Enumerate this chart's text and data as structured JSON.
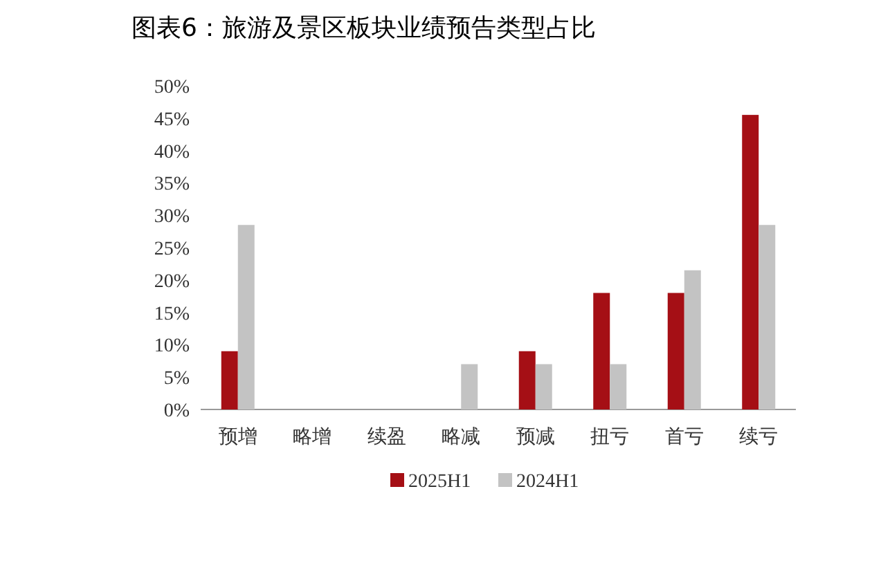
{
  "chart_data": {
    "type": "bar",
    "title": "图表6：旅游及景区板块业绩预告类型占比",
    "categories": [
      "预增",
      "略增",
      "续盈",
      "略减",
      "预减",
      "扭亏",
      "首亏",
      "续亏"
    ],
    "series": [
      {
        "name": "2025H1",
        "color": "#a50f15",
        "values": [
          9,
          0,
          0,
          0,
          9,
          18,
          18,
          45.5
        ]
      },
      {
        "name": "2024H1",
        "color": "#c3c3c3",
        "values": [
          28.5,
          0,
          0,
          7,
          7,
          7,
          21.5,
          28.5
        ]
      }
    ],
    "ylim": [
      0,
      50
    ],
    "yticks": [
      {
        "value": 0,
        "label": "0%"
      },
      {
        "value": 5,
        "label": "5%"
      },
      {
        "value": 10,
        "label": "10%"
      },
      {
        "value": 15,
        "label": "15%"
      },
      {
        "value": 20,
        "label": "20%"
      },
      {
        "value": 25,
        "label": "25%"
      },
      {
        "value": 30,
        "label": "30%"
      },
      {
        "value": 35,
        "label": "35%"
      },
      {
        "value": 40,
        "label": "40%"
      },
      {
        "value": 45,
        "label": "45%"
      },
      {
        "value": 50,
        "label": "50%"
      }
    ],
    "grid": false,
    "legend": "bottom"
  }
}
